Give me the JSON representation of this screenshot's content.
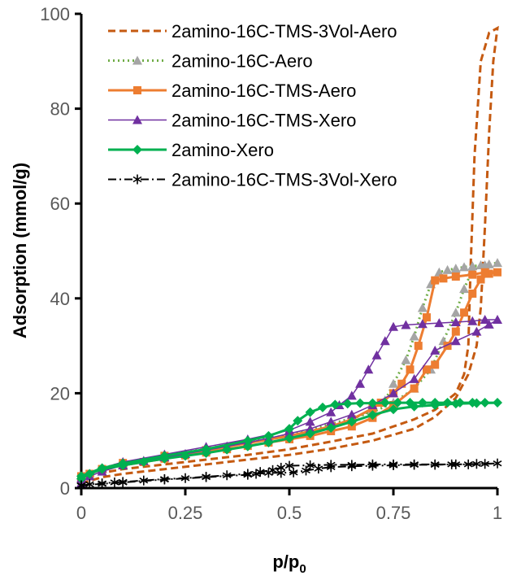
{
  "chart_data": {
    "type": "line",
    "title": "",
    "xlabel": {
      "text": "p/p",
      "subscript": "0"
    },
    "ylabel": "Adsorption (mmol/g)",
    "xlim": [
      0,
      1
    ],
    "ylim": [
      0,
      100
    ],
    "xticks": [
      0,
      0.25,
      0.5,
      0.75,
      1
    ],
    "xtick_labels": [
      "0",
      "0.25",
      "0.5",
      "0.75",
      "1"
    ],
    "yticks": [
      0,
      20,
      40,
      60,
      80,
      100
    ],
    "ytick_labels": [
      "0",
      "20",
      "40",
      "60",
      "80",
      "100"
    ],
    "grid": false,
    "legend_position": "top-right",
    "series": [
      {
        "name": "2amino-16C-TMS-3Vol-Aero",
        "color": "#C55A11",
        "line": "dashed",
        "marker": "none",
        "x": [
          0,
          0.05,
          0.1,
          0.2,
          0.3,
          0.4,
          0.5,
          0.6,
          0.7,
          0.8,
          0.85,
          0.9,
          0.93,
          0.95,
          0.96,
          0.97,
          0.98,
          0.99,
          1,
          0.98,
          0.96,
          0.945,
          0.935,
          0.93,
          0.92,
          0.9,
          0.85,
          0.8,
          0.7,
          0.6,
          0.5,
          0.4,
          0.3,
          0.2,
          0.1,
          0.05,
          0
        ],
        "y": [
          1,
          2.3,
          3,
          4,
          5,
          6,
          7,
          8.3,
          10,
          12.5,
          15,
          19,
          24,
          30,
          38,
          55,
          75,
          90,
          97,
          96,
          90,
          70,
          45,
          30,
          24,
          20,
          16.5,
          14.5,
          11.5,
          9.8,
          8.2,
          7,
          6,
          5,
          4,
          3.2,
          2
        ]
      },
      {
        "name": "2amino-16C-Aero",
        "color": "#70AD47",
        "marker_color": "#A5A5A5",
        "line": "dotted",
        "marker": "triangle",
        "x": [
          0,
          0.02,
          0.05,
          0.1,
          0.15,
          0.2,
          0.25,
          0.3,
          0.35,
          0.4,
          0.45,
          0.5,
          0.55,
          0.6,
          0.65,
          0.7,
          0.73,
          0.75,
          0.78,
          0.8,
          0.82,
          0.84,
          0.86,
          0.88,
          0.9,
          0.92,
          0.94,
          0.96,
          0.98,
          1,
          0.97,
          0.94,
          0.92,
          0.9,
          0.87,
          0.84,
          0.8,
          0.75,
          0.7,
          0.6,
          0.5,
          0.4,
          0.3,
          0.2,
          0.1,
          0.05,
          0
        ],
        "y": [
          2,
          3,
          4,
          5,
          5.8,
          6.5,
          7.2,
          8,
          8.8,
          9.5,
          10.3,
          11,
          12,
          13,
          14.5,
          16.5,
          18.5,
          22,
          27,
          32,
          38,
          43,
          45.5,
          46,
          46.3,
          46.6,
          46.8,
          47,
          47.2,
          47.5,
          47,
          46,
          42,
          37,
          31,
          25,
          21,
          18,
          16,
          13.5,
          11.2,
          9.8,
          8.3,
          6.8,
          5.3,
          4.2,
          2.5
        ]
      },
      {
        "name": "2amino-16C-TMS-Aero",
        "color": "#ED7D31",
        "line": "solid",
        "marker": "square",
        "x": [
          0,
          0.02,
          0.05,
          0.1,
          0.15,
          0.2,
          0.25,
          0.3,
          0.35,
          0.4,
          0.45,
          0.5,
          0.55,
          0.6,
          0.65,
          0.7,
          0.75,
          0.8,
          0.83,
          0.85,
          0.88,
          0.9,
          0.92,
          0.94,
          0.96,
          0.98,
          1,
          0.97,
          0.94,
          0.9,
          0.87,
          0.85,
          0.83,
          0.81,
          0.79,
          0.77,
          0.75,
          0.72,
          0.7,
          0.65,
          0.6,
          0.5,
          0.4,
          0.3,
          0.2,
          0.1,
          0.05,
          0
        ],
        "y": [
          2,
          3,
          4,
          4.8,
          5.5,
          6.2,
          6.9,
          7.5,
          8.2,
          8.9,
          9.6,
          10.3,
          11,
          12,
          13,
          14.8,
          17.5,
          21,
          25,
          26,
          30,
          33,
          37,
          41,
          44,
          45.2,
          45.5,
          45.5,
          45,
          44.6,
          44.2,
          43.8,
          36,
          30,
          25,
          22,
          20,
          18,
          16.8,
          14.5,
          13,
          11,
          9.5,
          8,
          6.8,
          5.3,
          4,
          2.5
        ]
      },
      {
        "name": "2amino-16C-TMS-Xero",
        "color": "#7030A0",
        "line": "solid-thin",
        "marker": "triangle",
        "x": [
          0,
          0.02,
          0.05,
          0.1,
          0.15,
          0.2,
          0.25,
          0.3,
          0.35,
          0.4,
          0.45,
          0.5,
          0.55,
          0.6,
          0.65,
          0.7,
          0.75,
          0.8,
          0.85,
          0.9,
          0.95,
          0.98,
          1,
          0.97,
          0.94,
          0.9,
          0.86,
          0.82,
          0.78,
          0.75,
          0.73,
          0.71,
          0.69,
          0.67,
          0.65,
          0.62,
          0.6,
          0.55,
          0.5,
          0.4,
          0.3,
          0.2,
          0.1,
          0.05,
          0
        ],
        "y": [
          1,
          2.5,
          3.5,
          4.8,
          5.7,
          6.5,
          7.2,
          8,
          8.8,
          9.6,
          10.5,
          11.5,
          12.5,
          14,
          15.5,
          17.5,
          20,
          23,
          29,
          31,
          33,
          34.5,
          35.5,
          35.5,
          35.2,
          35,
          34.8,
          34.6,
          34.4,
          34,
          31,
          28,
          25,
          22,
          19.5,
          17.5,
          16,
          14,
          12.2,
          10.3,
          8.7,
          7.1,
          5.5,
          4.2,
          2
        ]
      },
      {
        "name": "2amino-Xero",
        "color": "#00B050",
        "line": "solid",
        "marker": "diamond",
        "x": [
          0,
          0.02,
          0.05,
          0.1,
          0.15,
          0.2,
          0.25,
          0.3,
          0.35,
          0.4,
          0.45,
          0.5,
          0.55,
          0.6,
          0.65,
          0.7,
          0.75,
          0.8,
          0.85,
          0.9,
          0.95,
          1,
          0.97,
          0.94,
          0.91,
          0.88,
          0.85,
          0.82,
          0.79,
          0.76,
          0.73,
          0.7,
          0.67,
          0.64,
          0.61,
          0.58,
          0.55,
          0.52,
          0.5,
          0.45,
          0.4,
          0.3,
          0.2,
          0.1,
          0.05,
          0
        ],
        "y": [
          2,
          3,
          4,
          4.8,
          5.5,
          6.2,
          6.8,
          7.4,
          8.1,
          8.8,
          9.6,
          10.5,
          11.5,
          12.7,
          14,
          15.4,
          16.6,
          17.2,
          17.5,
          17.8,
          17.9,
          18,
          18,
          18,
          18,
          18,
          18,
          18,
          18,
          18,
          18,
          17.9,
          17.9,
          17.8,
          17.6,
          17,
          16,
          14.2,
          12.5,
          11,
          10,
          8.2,
          6.8,
          5.2,
          4.2,
          2.5
        ]
      },
      {
        "name": "2amino-16C-TMS-3Vol-Xero",
        "color": "#000000",
        "line": "dashdot",
        "marker": "asterisk",
        "x": [
          0,
          0.02,
          0.05,
          0.08,
          0.1,
          0.15,
          0.2,
          0.25,
          0.3,
          0.35,
          0.4,
          0.43,
          0.46,
          0.48,
          0.5,
          0.55,
          0.6,
          0.65,
          0.7,
          0.75,
          0.8,
          0.85,
          0.9,
          0.95,
          1,
          0.97,
          0.93,
          0.89,
          0.85,
          0.8,
          0.75,
          0.7,
          0.65,
          0.6,
          0.57,
          0.54,
          0.51,
          0.48,
          0.45,
          0.42,
          0.4,
          0.3,
          0.2,
          0.1,
          0.05,
          0
        ],
        "y": [
          0.5,
          0.8,
          1,
          1.2,
          1.3,
          1.6,
          1.9,
          2.1,
          2.4,
          2.7,
          3,
          3.4,
          3.8,
          4.3,
          4.7,
          4.8,
          4.9,
          4.9,
          5,
          5,
          5,
          5,
          5,
          5.1,
          5.2,
          5.1,
          5,
          5,
          4.9,
          4.9,
          4.8,
          4.7,
          4.6,
          4.4,
          4.1,
          3.7,
          3.3,
          3.2,
          3.2,
          3,
          2.8,
          2.3,
          1.8,
          1.2,
          0.9,
          0.6
        ]
      }
    ]
  }
}
